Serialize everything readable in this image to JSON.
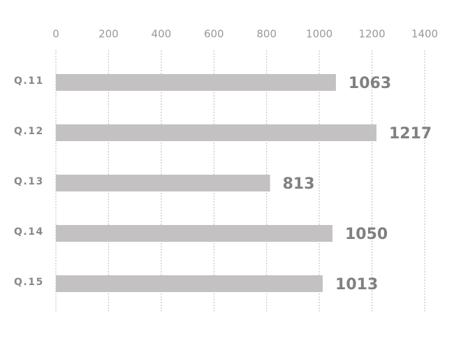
{
  "chart_data": {
    "type": "bar",
    "orientation": "horizontal",
    "categories": [
      "Q.11",
      "Q.12",
      "Q.13",
      "Q.14",
      "Q.15"
    ],
    "values": [
      1063,
      1217,
      813,
      1050,
      1013
    ],
    "color": "#c3c1c1",
    "xlim": [
      0,
      1400
    ],
    "xticks": [
      0,
      200,
      400,
      600,
      800,
      1000,
      1200,
      1400
    ],
    "grid": true
  }
}
